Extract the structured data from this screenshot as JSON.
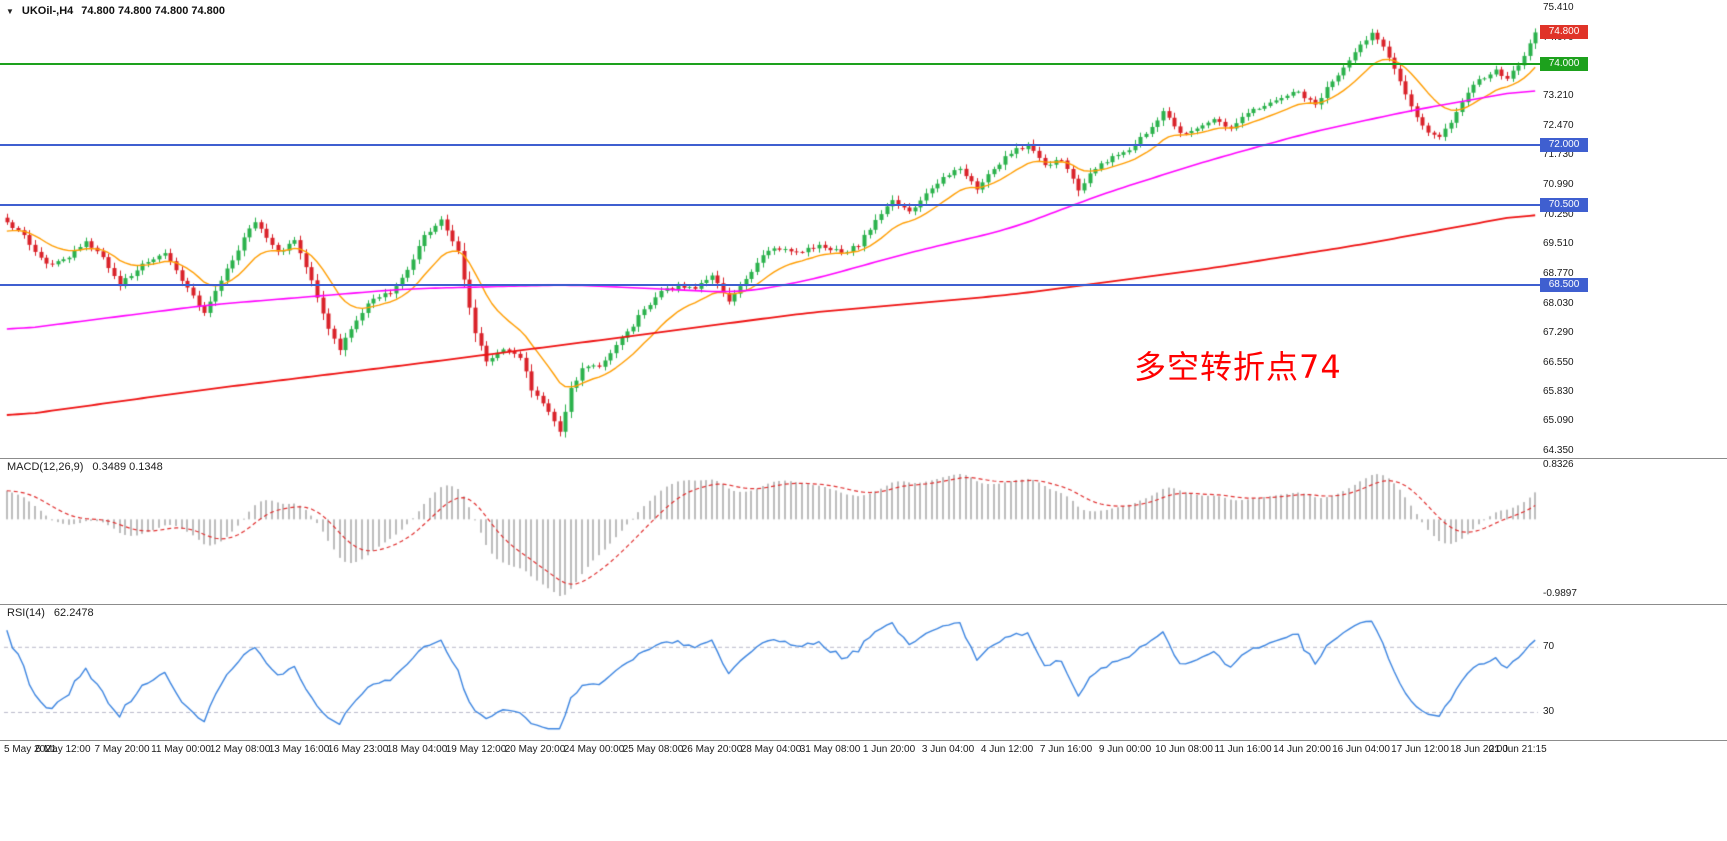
{
  "app": {
    "background": "#ffffff"
  },
  "header": {
    "dropdown_icon": "▼",
    "symbol_period": "UKOil-,H4",
    "ohlc": "74.800 74.800 74.800 74.800"
  },
  "annotation": {
    "text": "多空转折点74",
    "color": "#ff0000"
  },
  "chart_data": {
    "type": "candlestick",
    "symbol": "UKOil-",
    "timeframe": "H4",
    "current_price": 74.8,
    "bars_visible": 272,
    "price_axis": {
      "min": 64.35,
      "max": 75.41,
      "labels": [
        "75.410",
        "74.670",
        "73.210",
        "72.470",
        "71.730",
        "70.990",
        "70.250",
        "69.510",
        "68.770",
        "68.030",
        "67.290",
        "66.550",
        "65.830",
        "65.090",
        "64.350"
      ]
    },
    "price_badge": {
      "label": "74.800",
      "color": "#e03328"
    },
    "horizontal_levels": [
      {
        "price": 74.0,
        "label": "74.000",
        "color": "#1da11d",
        "thickness": 2
      },
      {
        "price": 72.0,
        "label": "72.000",
        "color": "#3f5fd0",
        "thickness": 2
      },
      {
        "price": 70.5,
        "label": "70.500",
        "color": "#3f5fd0",
        "thickness": 2
      },
      {
        "price": 68.5,
        "label": "68.500",
        "color": "#3f5fd0",
        "thickness": 2
      }
    ],
    "candle_colors": {
      "up": "#2bb24c",
      "down": "#d9222a"
    },
    "price_path": [
      [
        0,
        70.1
      ],
      [
        3,
        69.7
      ],
      [
        7,
        69.0
      ],
      [
        10,
        69.1
      ],
      [
        14,
        69.6
      ],
      [
        17,
        69.2
      ],
      [
        20,
        68.5
      ],
      [
        24,
        69.0
      ],
      [
        28,
        69.3
      ],
      [
        31,
        68.6
      ],
      [
        35,
        67.8
      ],
      [
        38,
        68.6
      ],
      [
        41,
        69.4
      ],
      [
        44,
        70.1
      ],
      [
        48,
        69.3
      ],
      [
        51,
        69.6
      ],
      [
        54,
        68.6
      ],
      [
        57,
        67.4
      ],
      [
        59,
        66.9
      ],
      [
        62,
        67.6
      ],
      [
        65,
        68.2
      ],
      [
        68,
        68.3
      ],
      [
        71,
        68.9
      ],
      [
        74,
        69.7
      ],
      [
        77,
        70.1
      ],
      [
        80,
        69.3
      ],
      [
        83,
        67.3
      ],
      [
        85,
        66.6
      ],
      [
        88,
        66.9
      ],
      [
        91,
        66.7
      ],
      [
        93,
        65.9
      ],
      [
        95,
        65.5
      ],
      [
        97,
        65.1
      ],
      [
        98,
        64.8
      ],
      [
        100,
        65.9
      ],
      [
        102,
        66.4
      ],
      [
        105,
        66.5
      ],
      [
        107,
        66.8
      ],
      [
        110,
        67.3
      ],
      [
        113,
        67.9
      ],
      [
        116,
        68.3
      ],
      [
        119,
        68.5
      ],
      [
        122,
        68.4
      ],
      [
        125,
        68.7
      ],
      [
        128,
        68.1
      ],
      [
        131,
        68.6
      ],
      [
        134,
        69.2
      ],
      [
        136,
        69.4
      ],
      [
        140,
        69.3
      ],
      [
        144,
        69.5
      ],
      [
        148,
        69.3
      ],
      [
        151,
        69.5
      ],
      [
        154,
        70.1
      ],
      [
        157,
        70.6
      ],
      [
        160,
        70.3
      ],
      [
        163,
        70.8
      ],
      [
        166,
        71.2
      ],
      [
        169,
        71.4
      ],
      [
        172,
        70.9
      ],
      [
        175,
        71.4
      ],
      [
        178,
        71.8
      ],
      [
        181,
        72.0
      ],
      [
        184,
        71.5
      ],
      [
        187,
        71.6
      ],
      [
        190,
        70.9
      ],
      [
        193,
        71.4
      ],
      [
        196,
        71.7
      ],
      [
        199,
        71.9
      ],
      [
        202,
        72.3
      ],
      [
        205,
        72.8
      ],
      [
        208,
        72.3
      ],
      [
        211,
        72.4
      ],
      [
        214,
        72.6
      ],
      [
        217,
        72.4
      ],
      [
        220,
        72.8
      ],
      [
        223,
        73.0
      ],
      [
        226,
        73.2
      ],
      [
        229,
        73.3
      ],
      [
        232,
        73.0
      ],
      [
        235,
        73.6
      ],
      [
        238,
        74.1
      ],
      [
        240,
        74.5
      ],
      [
        242,
        74.8
      ],
      [
        244,
        74.4
      ],
      [
        246,
        73.9
      ],
      [
        248,
        73.3
      ],
      [
        250,
        72.7
      ],
      [
        252,
        72.3
      ],
      [
        254,
        72.2
      ],
      [
        256,
        72.5
      ],
      [
        258,
        73.1
      ],
      [
        260,
        73.5
      ],
      [
        262,
        73.7
      ],
      [
        264,
        73.9
      ],
      [
        266,
        73.6
      ],
      [
        268,
        74.0
      ],
      [
        270,
        74.5
      ],
      [
        271,
        74.8
      ]
    ],
    "moving_averages": {
      "fast": {
        "color": "#ff9d00",
        "period": 13
      },
      "medium": {
        "color": "#ff00ff",
        "path": [
          [
            0,
            67.35
          ],
          [
            36,
            68.0
          ],
          [
            71,
            68.4
          ],
          [
            100,
            68.5
          ],
          [
            115,
            68.4
          ],
          [
            130,
            68.3
          ],
          [
            142,
            68.6
          ],
          [
            160,
            69.3
          ],
          [
            178,
            69.9
          ],
          [
            195,
            70.8
          ],
          [
            213,
            71.6
          ],
          [
            231,
            72.3
          ],
          [
            249,
            72.85
          ],
          [
            271,
            73.4
          ]
        ]
      },
      "slow": {
        "color": "#ee1111",
        "path": [
          [
            0,
            65.2
          ],
          [
            36,
            65.9
          ],
          [
            71,
            66.5
          ],
          [
            107,
            67.15
          ],
          [
            142,
            67.8
          ],
          [
            178,
            68.25
          ],
          [
            213,
            68.9
          ],
          [
            240,
            69.5
          ],
          [
            271,
            70.3
          ]
        ]
      }
    },
    "time_axis_labels": [
      "5 May 2021",
      "6 May 12:00",
      "7 May 20:00",
      "11 May 00:00",
      "12 May 08:00",
      "13 May 16:00",
      "16 May 23:00",
      "18 May 04:00",
      "19 May 12:00",
      "20 May 20:00",
      "24 May 00:00",
      "25 May 08:00",
      "26 May 20:00",
      "28 May 04:00",
      "31 May 08:00",
      "1 Jun 20:00",
      "3 Jun 04:00",
      "4 Jun 12:00",
      "7 Jun 16:00",
      "9 Jun 00:00",
      "10 Jun 08:00",
      "11 Jun 16:00",
      "14 Jun 20:00",
      "16 Jun 04:00",
      "17 Jun 12:00",
      "18 Jun 20:00",
      "21 Jun 21:15"
    ],
    "indicators": {
      "macd": {
        "title": "MACD(12,26,9)",
        "values": "0.3489 0.1348",
        "axis_max": "0.8326",
        "axis_min": "-0.9897",
        "histogram_color": "#bdbdbd",
        "signal_color": "#e03030"
      },
      "rsi": {
        "title": "RSI(14)",
        "value": "62.2478",
        "levels": [
          "70",
          "30"
        ],
        "line_color": "#3d85e0",
        "level_line_color": "#b9b9c9"
      }
    }
  }
}
